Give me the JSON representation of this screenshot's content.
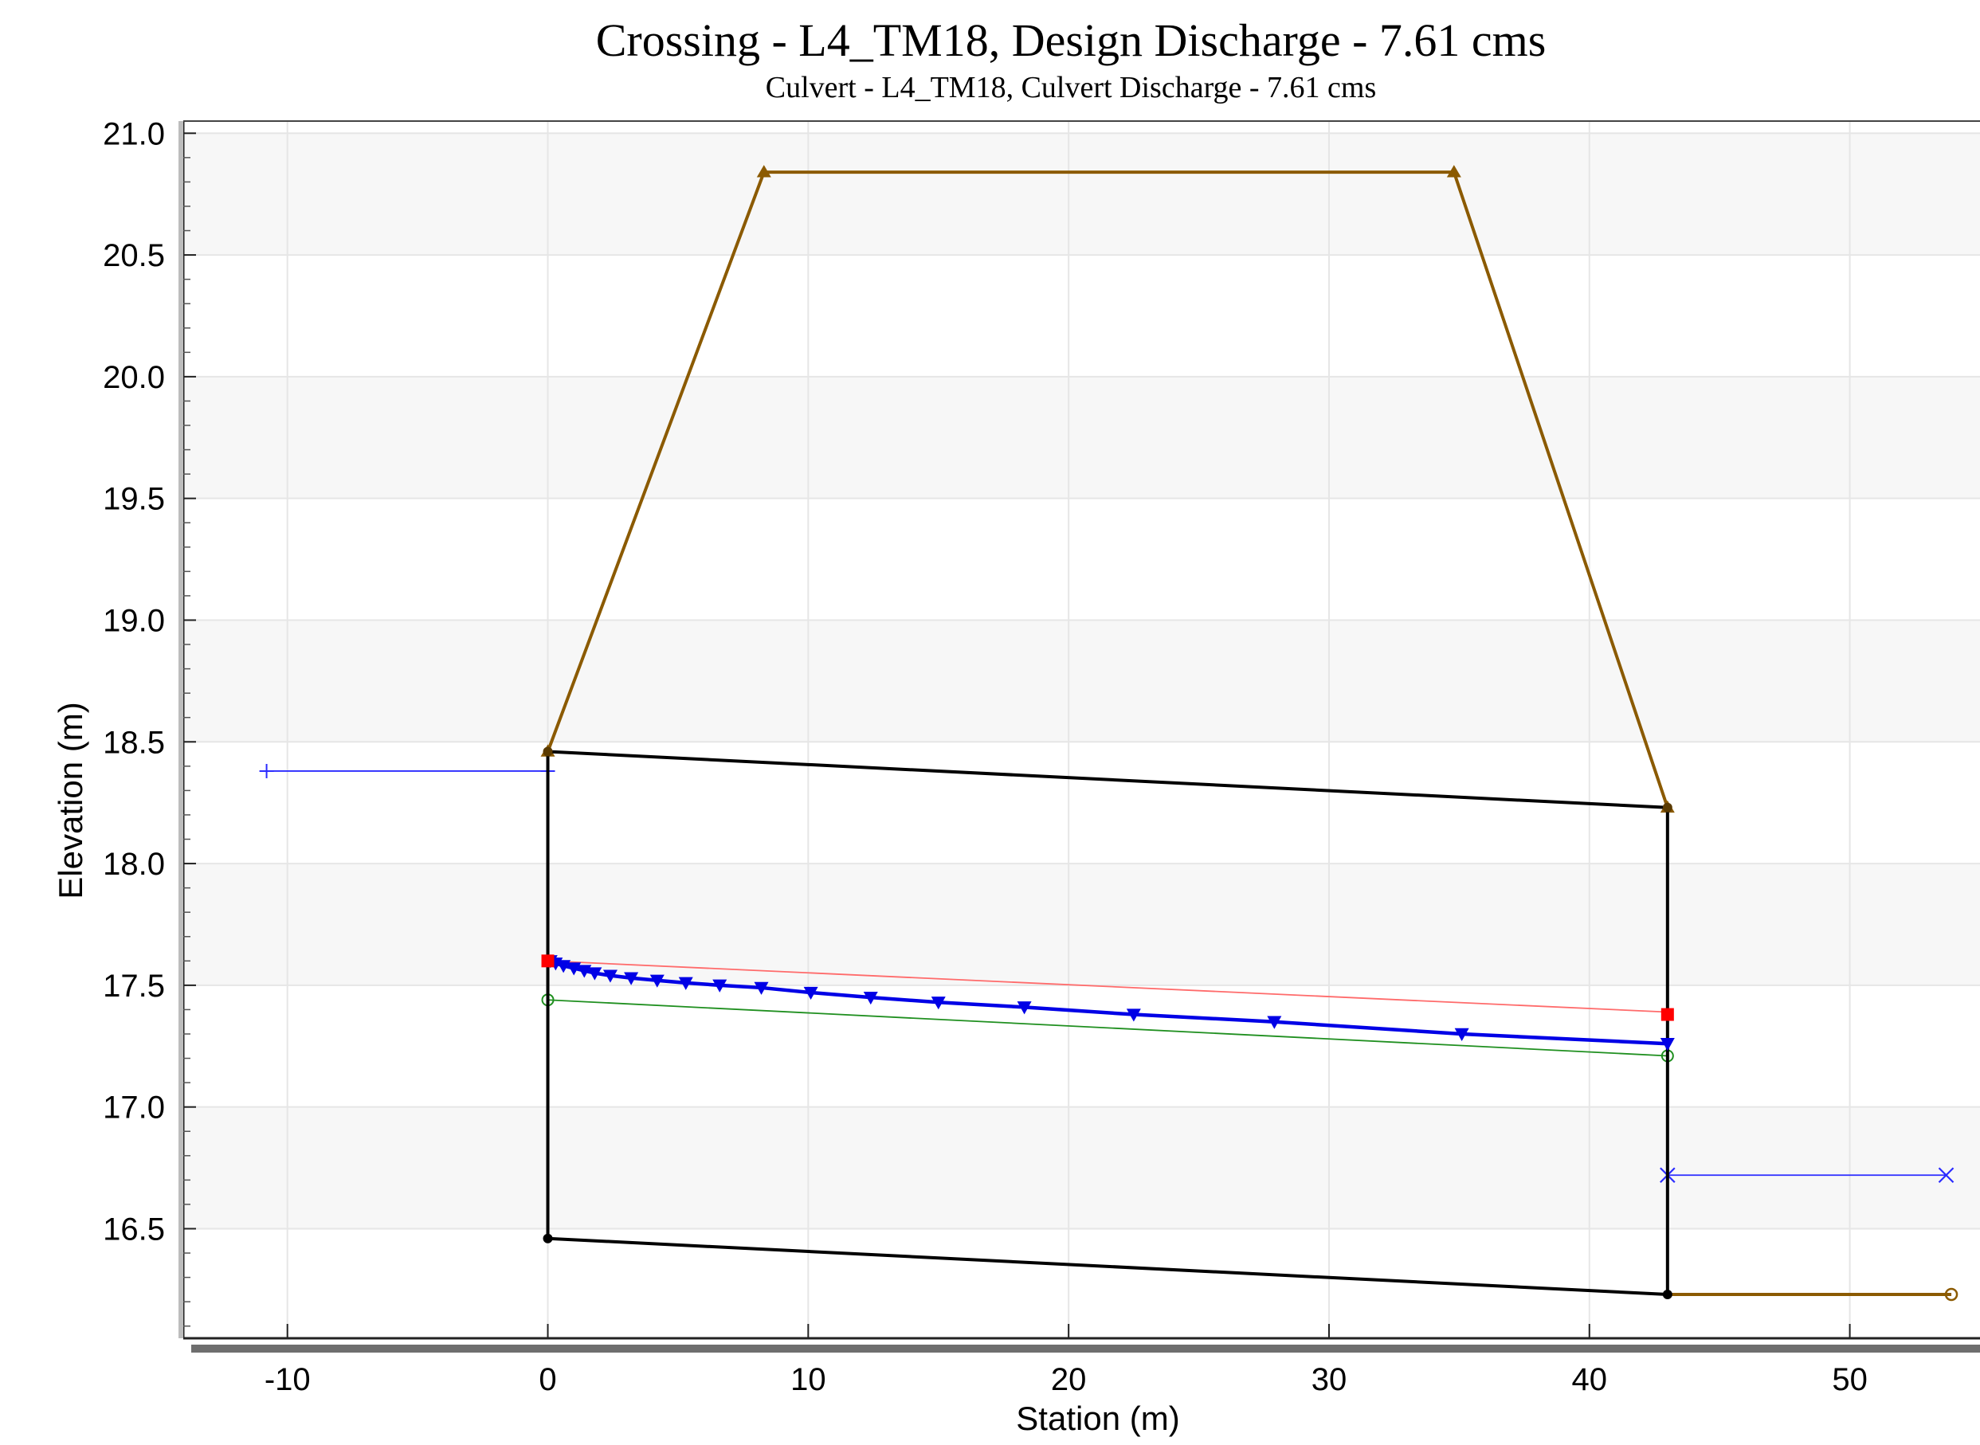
{
  "chart_data": {
    "type": "line",
    "title": "Crossing - L4_TM18, Design Discharge - 7.61 cms",
    "subtitle": "Culvert - L4_TM18, Culvert Discharge - 7.61 cms",
    "xlabel": "Station (m)",
    "ylabel": "Elevation (m)",
    "xlim": [
      -14,
      55
    ],
    "ylim": [
      16.05,
      21.05
    ],
    "xticks": [
      -10,
      0,
      10,
      20,
      30,
      40,
      50
    ],
    "xtick_labels": [
      "-10",
      "0",
      "10",
      "20",
      "30",
      "40",
      "50"
    ],
    "yticks": [
      16.5,
      17.0,
      17.5,
      18.0,
      18.5,
      19.0,
      19.5,
      20.0,
      20.5,
      21.0
    ],
    "ytick_labels": [
      "16.5",
      "17.0",
      "17.5",
      "18.0",
      "18.5",
      "19.0",
      "19.5",
      "20.0",
      "20.5",
      "21.0"
    ],
    "grid": true,
    "colors": {
      "embankment": "#8b5a00",
      "culvert": "#000000",
      "water_surface": "#0000e6",
      "critical_depth": "#ff6b6b",
      "normal_depth": "#1f8f1f",
      "headwater": "#2b2bff",
      "tailwater": "#2b2bff",
      "inlet_control": "#ff0000"
    },
    "series": [
      {
        "key": "embankment",
        "x": [
          0,
          8.3,
          34.8,
          43.0
        ],
        "y": [
          18.46,
          20.84,
          20.84,
          18.23
        ],
        "marker": "triangle"
      },
      {
        "key": "tailwater_channel",
        "x": [
          43.0,
          53.9
        ],
        "y": [
          16.23,
          16.23
        ],
        "marker": "circle-end"
      },
      {
        "key": "culvert_top",
        "x": [
          0,
          43.0
        ],
        "y": [
          18.46,
          18.23
        ]
      },
      {
        "key": "culvert_bottom",
        "x": [
          0,
          43.0
        ],
        "y": [
          16.46,
          16.23
        ]
      },
      {
        "key": "culvert_inlet",
        "x": [
          0,
          0
        ],
        "y": [
          16.46,
          18.46
        ]
      },
      {
        "key": "culvert_outlet",
        "x": [
          43.0,
          43.0
        ],
        "y": [
          16.23,
          18.23
        ]
      },
      {
        "key": "water_surface",
        "x": [
          0.1,
          0.3,
          0.6,
          1.0,
          1.4,
          1.8,
          2.4,
          3.2,
          4.2,
          5.3,
          6.6,
          8.2,
          10.1,
          12.4,
          15.0,
          18.3,
          22.5,
          27.9,
          35.1,
          43.0
        ],
        "y": [
          17.6,
          17.59,
          17.58,
          17.57,
          17.56,
          17.55,
          17.54,
          17.53,
          17.52,
          17.51,
          17.5,
          17.49,
          17.47,
          17.45,
          17.43,
          17.41,
          17.38,
          17.35,
          17.3,
          17.26
        ],
        "marker": "inverted-triangle"
      },
      {
        "key": "critical_depth",
        "x": [
          0,
          43.0
        ],
        "y": [
          17.6,
          17.39
        ]
      },
      {
        "key": "normal_depth",
        "x": [
          0,
          43.0
        ],
        "y": [
          17.44,
          17.21
        ],
        "marker": "open-circle"
      },
      {
        "key": "headwater",
        "x": [
          -10.8,
          0
        ],
        "y": [
          18.38,
          18.38
        ],
        "marker": "plus"
      },
      {
        "key": "tailwater",
        "x": [
          43.0,
          53.7
        ],
        "y": [
          16.72,
          16.72
        ],
        "marker": "x"
      },
      {
        "key": "inlet_control",
        "x": [
          0,
          43.0
        ],
        "y": [
          17.6,
          17.38
        ],
        "marker": "square"
      }
    ]
  }
}
